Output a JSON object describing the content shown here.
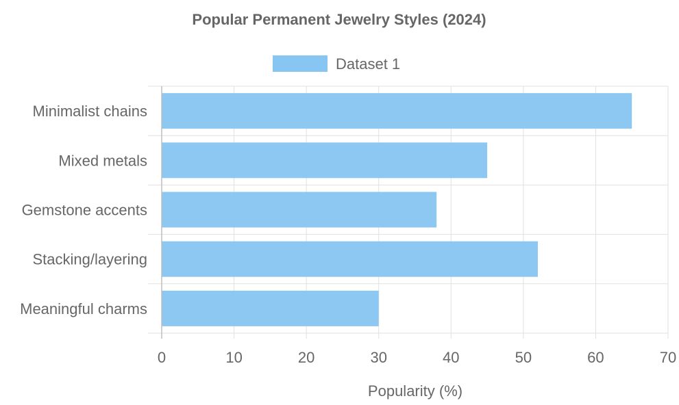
{
  "chart_data": {
    "type": "bar",
    "orientation": "horizontal",
    "title": "Popular Permanent Jewelry Styles (2024)",
    "xlabel": "Popularity (%)",
    "ylabel": "",
    "categories": [
      "Minimalist chains",
      "Mixed metals",
      "Gemstone accents",
      "Stacking/layering",
      "Meaningful charms"
    ],
    "series": [
      {
        "name": "Dataset 1",
        "values": [
          65,
          45,
          38,
          52,
          30
        ],
        "color": "#87c5f2",
        "border_color": "#7bbbea"
      }
    ],
    "xlim": [
      0,
      70
    ],
    "x_ticks": [
      "0",
      "10",
      "20",
      "30",
      "40",
      "50",
      "60",
      "70"
    ],
    "grid": true,
    "legend_position": "top"
  }
}
